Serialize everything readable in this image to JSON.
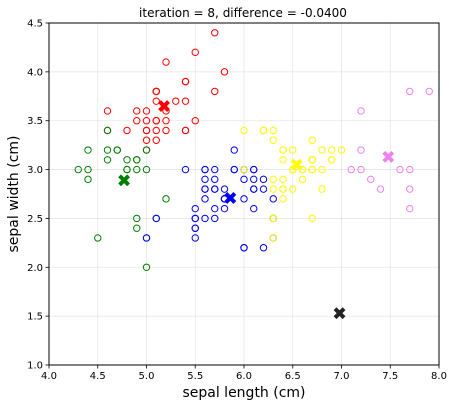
{
  "chart_data": {
    "type": "scatter",
    "title": "iteration = 8, difference = -0.0400",
    "xlabel": "sepal length (cm)",
    "ylabel": "sepal width (cm)",
    "xlim": [
      4.0,
      8.0
    ],
    "ylim": [
      1.0,
      4.5
    ],
    "x_ticks": [
      "4.0",
      "4.5",
      "5.0",
      "5.5",
      "6.0",
      "6.5",
      "7.0",
      "7.5",
      "8.0"
    ],
    "y_ticks": [
      "1.0",
      "1.5",
      "2.0",
      "2.5",
      "3.0",
      "3.5",
      "4.0",
      "4.5"
    ],
    "grid": true,
    "series": [
      {
        "color": "#ff0000",
        "points": [
          [
            5.1,
            3.5
          ],
          [
            5.0,
            3.6
          ],
          [
            5.4,
            3.9
          ],
          [
            4.6,
            3.4
          ],
          [
            5.0,
            3.4
          ],
          [
            5.4,
            3.7
          ],
          [
            4.8,
            3.4
          ],
          [
            5.8,
            4.0
          ],
          [
            5.7,
            4.4
          ],
          [
            5.4,
            3.9
          ],
          [
            5.1,
            3.5
          ],
          [
            5.7,
            3.8
          ],
          [
            5.1,
            3.8
          ],
          [
            5.4,
            3.4
          ],
          [
            5.1,
            3.7
          ],
          [
            5.1,
            3.3
          ],
          [
            5.2,
            3.5
          ],
          [
            5.2,
            3.4
          ],
          [
            5.4,
            3.4
          ],
          [
            5.2,
            4.1
          ],
          [
            5.5,
            4.2
          ],
          [
            5.0,
            3.2
          ],
          [
            5.5,
            3.5
          ],
          [
            5.1,
            3.4
          ],
          [
            5.0,
            3.5
          ],
          [
            5.1,
            3.8
          ],
          [
            5.1,
            3.8
          ],
          [
            4.6,
            3.6
          ],
          [
            5.0,
            3.3
          ],
          [
            5.3,
            3.7
          ],
          [
            4.9,
            3.6
          ],
          [
            4.9,
            3.5
          ],
          [
            5.0,
            3.4
          ],
          [
            5.2,
            3.6
          ]
        ],
        "centroid": [
          5.18,
          3.65
        ]
      },
      {
        "color": "#008000",
        "points": [
          [
            4.9,
            3.0
          ],
          [
            4.7,
            3.2
          ],
          [
            4.6,
            3.1
          ],
          [
            4.4,
            2.9
          ],
          [
            4.8,
            3.0
          ],
          [
            4.3,
            3.0
          ],
          [
            4.6,
            3.2
          ],
          [
            4.4,
            3.0
          ],
          [
            4.5,
            2.3
          ],
          [
            4.4,
            3.2
          ],
          [
            4.8,
            3.1
          ],
          [
            5.0,
            3.0
          ],
          [
            4.9,
            3.1
          ],
          [
            4.9,
            2.5
          ],
          [
            5.1,
            2.5
          ],
          [
            5.0,
            2.3
          ],
          [
            4.9,
            2.4
          ],
          [
            5.0,
            2.0
          ],
          [
            5.2,
            2.7
          ],
          [
            4.7,
            3.2
          ],
          [
            4.8,
            3.0
          ],
          [
            4.9,
            3.1
          ],
          [
            5.0,
            3.2
          ],
          [
            4.6,
            3.4
          ]
        ],
        "centroid": [
          4.77,
          2.89
        ]
      },
      {
        "color": "#0000ff",
        "points": [
          [
            5.5,
            2.3
          ],
          [
            5.7,
            2.8
          ],
          [
            5.8,
            2.7
          ],
          [
            5.6,
            2.9
          ],
          [
            5.8,
            2.7
          ],
          [
            6.2,
            2.2
          ],
          [
            5.6,
            2.5
          ],
          [
            5.9,
            3.2
          ],
          [
            6.1,
            2.8
          ],
          [
            6.0,
            2.2
          ],
          [
            5.6,
            3.0
          ],
          [
            5.8,
            2.7
          ],
          [
            6.0,
            2.9
          ],
          [
            5.7,
            2.6
          ],
          [
            5.5,
            2.4
          ],
          [
            5.5,
            2.4
          ],
          [
            5.8,
            2.7
          ],
          [
            6.0,
            2.7
          ],
          [
            5.4,
            3.0
          ],
          [
            6.0,
            3.0
          ],
          [
            6.3,
            2.3
          ],
          [
            5.6,
            3.0
          ],
          [
            5.5,
            2.5
          ],
          [
            5.5,
            2.6
          ],
          [
            6.1,
            3.0
          ],
          [
            5.8,
            2.6
          ],
          [
            5.0,
            2.3
          ],
          [
            5.6,
            2.7
          ],
          [
            5.7,
            3.0
          ],
          [
            5.7,
            2.9
          ],
          [
            6.2,
            2.9
          ],
          [
            5.1,
            2.5
          ],
          [
            5.7,
            2.8
          ],
          [
            5.8,
            2.8
          ],
          [
            6.3,
            2.5
          ],
          [
            6.1,
            2.8
          ],
          [
            6.0,
            2.2
          ],
          [
            6.2,
            2.8
          ],
          [
            5.6,
            2.8
          ],
          [
            5.7,
            2.5
          ],
          [
            6.3,
            2.7
          ],
          [
            5.9,
            3.0
          ],
          [
            6.1,
            2.6
          ],
          [
            6.0,
            3.0
          ],
          [
            5.6,
            2.8
          ],
          [
            6.1,
            2.9
          ],
          [
            6.3,
            2.5
          ],
          [
            5.9,
            3.0
          ],
          [
            5.5,
            2.5
          ],
          [
            6.1,
            3.0
          ]
        ],
        "centroid": [
          5.86,
          2.71
        ]
      },
      {
        "color": "#ffff00",
        "points": [
          [
            6.4,
            3.2
          ],
          [
            6.5,
            2.8
          ],
          [
            6.3,
            3.3
          ],
          [
            6.6,
            2.9
          ],
          [
            6.7,
            3.1
          ],
          [
            6.3,
            2.5
          ],
          [
            6.4,
            2.9
          ],
          [
            6.6,
            3.0
          ],
          [
            6.8,
            2.8
          ],
          [
            6.7,
            3.0
          ],
          [
            6.7,
            3.1
          ],
          [
            6.3,
            3.4
          ],
          [
            6.0,
            3.4
          ],
          [
            6.7,
            3.1
          ],
          [
            6.3,
            2.3
          ],
          [
            6.5,
            3.0
          ],
          [
            6.4,
            2.8
          ],
          [
            6.5,
            3.0
          ],
          [
            6.4,
            3.1
          ],
          [
            6.8,
            3.0
          ],
          [
            6.7,
            3.3
          ],
          [
            6.7,
            3.0
          ],
          [
            6.3,
            2.5
          ],
          [
            6.5,
            3.2
          ],
          [
            6.2,
            3.4
          ],
          [
            6.9,
            3.1
          ],
          [
            6.9,
            3.2
          ],
          [
            6.7,
            2.5
          ],
          [
            6.5,
            3.0
          ],
          [
            6.4,
            3.2
          ],
          [
            6.8,
            3.2
          ],
          [
            6.9,
            3.1
          ],
          [
            6.3,
            2.8
          ],
          [
            6.2,
            3.4
          ],
          [
            6.4,
            2.7
          ],
          [
            6.0,
            3.0
          ],
          [
            6.3,
            2.9
          ],
          [
            7.0,
            3.2
          ],
          [
            6.6,
            3.0
          ],
          [
            6.4,
            2.8
          ]
        ],
        "centroid": [
          6.54,
          3.05
        ]
      },
      {
        "color": "#ee82ee",
        "points": [
          [
            7.1,
            3.0
          ],
          [
            7.6,
            3.0
          ],
          [
            7.3,
            2.9
          ],
          [
            7.2,
            3.6
          ],
          [
            7.7,
            3.8
          ],
          [
            7.7,
            2.6
          ],
          [
            7.7,
            2.8
          ],
          [
            7.2,
            3.2
          ],
          [
            7.2,
            3.0
          ],
          [
            7.4,
            2.8
          ],
          [
            7.9,
            3.8
          ],
          [
            7.7,
            3.0
          ]
        ],
        "centroid": [
          7.48,
          3.13
        ]
      }
    ],
    "unassigned_centroid": {
      "color": "#222222",
      "point": [
        6.98,
        1.53
      ]
    }
  }
}
